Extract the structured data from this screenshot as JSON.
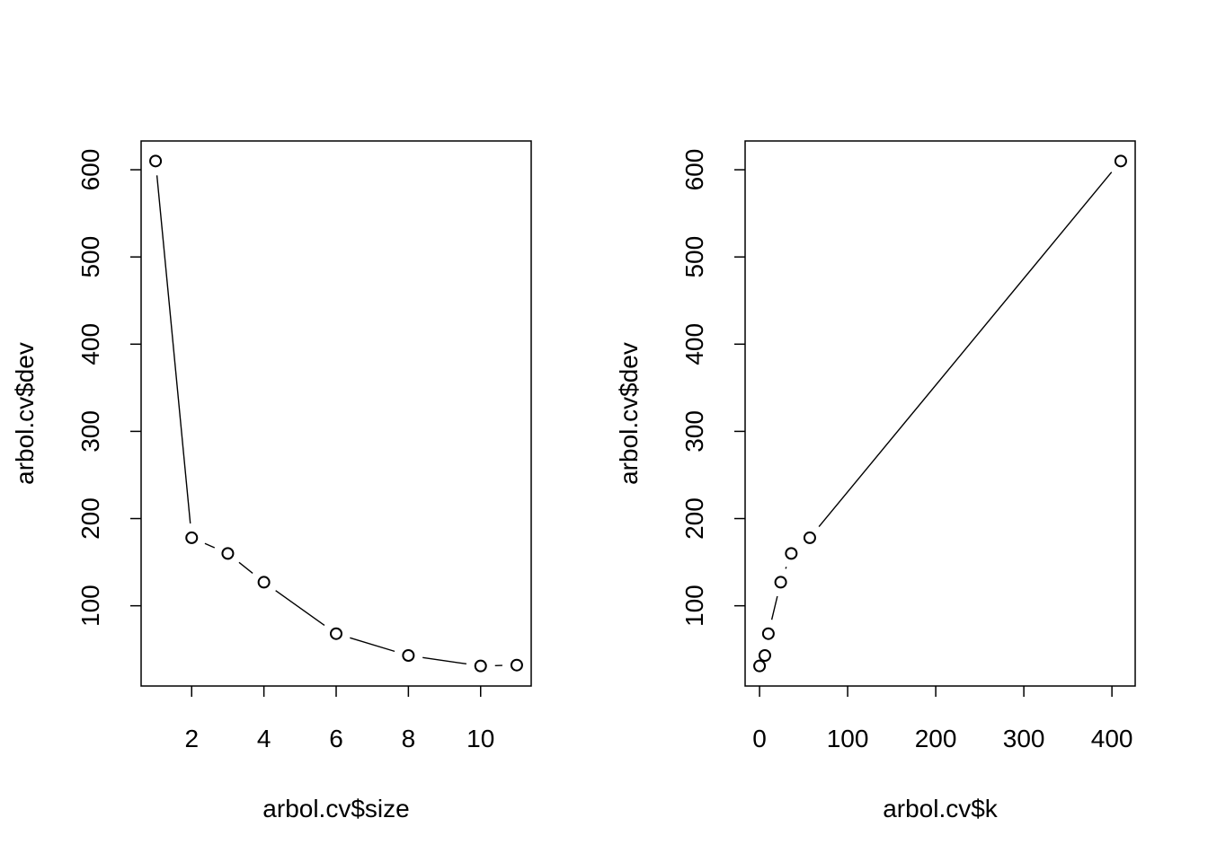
{
  "chart_data": [
    {
      "type": "line",
      "marker": "open-circle",
      "line_style": "b",
      "xlabel": "arbol.cv$size",
      "ylabel": "arbol.cv$dev",
      "x": [
        1,
        2,
        3,
        4,
        6,
        8,
        10,
        11
      ],
      "y": [
        610,
        178,
        160,
        127,
        68,
        43,
        31,
        32
      ],
      "xlim": [
        0.6,
        11.4
      ],
      "ylim": [
        8,
        633
      ],
      "xticks": [
        2,
        4,
        6,
        8,
        10
      ],
      "xtick_labels": [
        "2",
        "4",
        "6",
        "8",
        "10"
      ],
      "yticks": [
        100,
        200,
        300,
        400,
        500,
        600
      ],
      "ytick_labels": [
        "100",
        "200",
        "300",
        "400",
        "500",
        "600"
      ],
      "grid": false
    },
    {
      "type": "line",
      "marker": "open-circle",
      "line_style": "b",
      "xlabel": "arbol.cv$k",
      "ylabel": "arbol.cv$dev",
      "x": [
        0,
        6,
        10,
        24,
        36,
        57,
        410
      ],
      "y": [
        31,
        43,
        68,
        127,
        160,
        178,
        610
      ],
      "xlim": [
        -16.4,
        426.4
      ],
      "ylim": [
        8,
        633
      ],
      "xticks": [
        0,
        100,
        200,
        300,
        400
      ],
      "xtick_labels": [
        "0",
        "100",
        "200",
        "300",
        "400"
      ],
      "yticks": [
        100,
        200,
        300,
        400,
        500,
        600
      ],
      "ytick_labels": [
        "100",
        "200",
        "300",
        "400",
        "500",
        "600"
      ],
      "grid": false
    }
  ]
}
